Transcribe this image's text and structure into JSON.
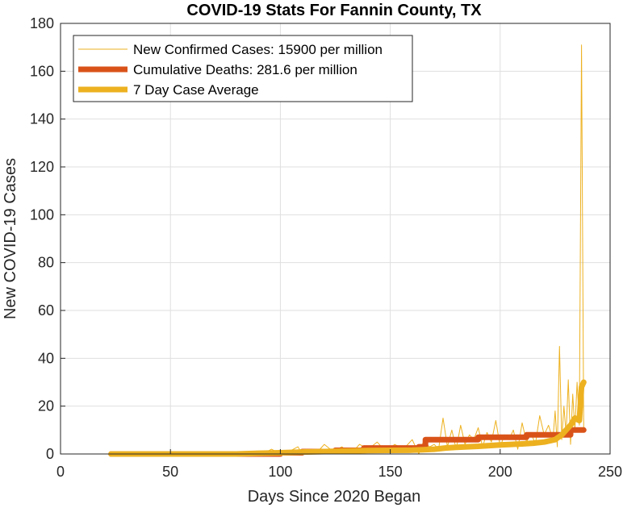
{
  "chart_data": {
    "type": "line",
    "title": "COVID-19 Stats For Fannin County, TX",
    "xlabel": "Days Since 2020 Began",
    "ylabel": "New COVID-19 Cases",
    "xlim": [
      0,
      250
    ],
    "ylim": [
      0,
      180
    ],
    "xticks": [
      0,
      50,
      100,
      150,
      200,
      250
    ],
    "yticks": [
      0,
      20,
      40,
      60,
      80,
      100,
      120,
      140,
      160,
      180
    ],
    "grid": true,
    "legend_position": "top-left",
    "series": [
      {
        "name": "New Confirmed Cases: 15900 per million",
        "color": "#EDB120",
        "style": "thin",
        "x": [
          23,
          80,
          88,
          92,
          96,
          100,
          104,
          108,
          110,
          114,
          116,
          120,
          124,
          128,
          132,
          136,
          140,
          144,
          148,
          152,
          156,
          160,
          163,
          165,
          168,
          170,
          172,
          174,
          176,
          178,
          180,
          182,
          184,
          186,
          188,
          190,
          192,
          194,
          196,
          198,
          200,
          202,
          204,
          206,
          208,
          210,
          212,
          214,
          216,
          218,
          220,
          222,
          224,
          225,
          226,
          227,
          228,
          229,
          230,
          231,
          232,
          233,
          234,
          235,
          236,
          237,
          238
        ],
        "y": [
          0,
          0,
          1,
          0,
          2,
          0,
          1,
          3,
          0,
          2,
          0,
          4,
          1,
          3,
          0,
          4,
          2,
          5,
          1,
          4,
          2,
          6,
          0,
          5,
          3,
          4,
          2,
          15,
          3,
          10,
          2,
          12,
          4,
          8,
          6,
          11,
          3,
          9,
          5,
          14,
          3,
          8,
          6,
          10,
          2,
          13,
          5,
          9,
          4,
          16,
          8,
          12,
          6,
          18,
          3,
          45,
          6,
          20,
          8,
          31,
          4,
          25,
          10,
          30,
          12,
          171,
          10
        ]
      },
      {
        "name": "Cumulative Deaths: 281.6 per million",
        "color": "#D95319",
        "style": "thick",
        "x": [
          23,
          100,
          100,
          110,
          110,
          125,
          125,
          138,
          138,
          163,
          163,
          166,
          166,
          190,
          190,
          212,
          212,
          232,
          232,
          238
        ],
        "y": [
          0,
          0,
          0.5,
          0.5,
          1,
          1,
          1.5,
          1.5,
          2.5,
          2.5,
          3,
          3,
          6,
          6,
          7,
          7,
          8,
          8,
          10,
          10
        ]
      },
      {
        "name": "7 Day Case Average",
        "color": "#EDB120",
        "style": "thick",
        "x": [
          23,
          80,
          90,
          100,
          110,
          120,
          130,
          140,
          150,
          160,
          165,
          170,
          175,
          180,
          185,
          190,
          195,
          200,
          205,
          210,
          215,
          220,
          225,
          228,
          230,
          232,
          234,
          236,
          237,
          238
        ],
        "y": [
          0,
          0,
          0.3,
          0.5,
          0.8,
          1,
          1.2,
          1.4,
          1.5,
          1.6,
          1.8,
          2,
          2.5,
          2.8,
          3,
          3.2,
          3.5,
          3.8,
          4,
          4.2,
          4.5,
          5,
          6,
          8,
          10,
          12,
          15,
          14,
          28,
          30
        ]
      }
    ]
  }
}
